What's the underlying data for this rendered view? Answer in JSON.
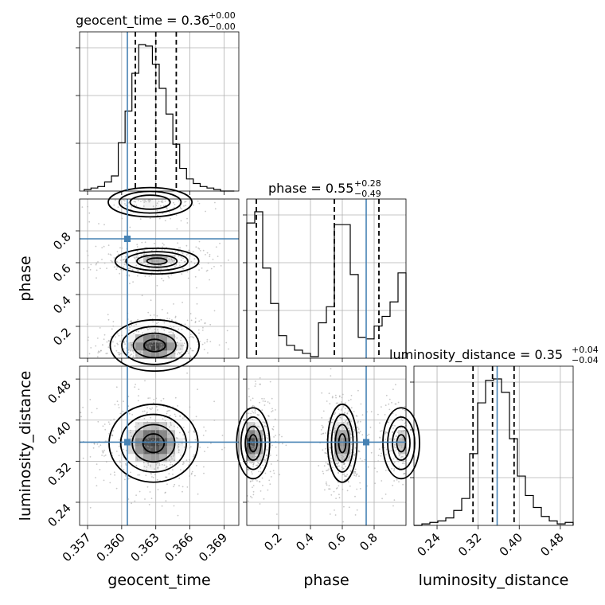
{
  "chart_data": {
    "type": "corner",
    "parameters": [
      "geocent_time",
      "phase",
      "luminosity_distance"
    ],
    "ranges": {
      "geocent_time": [
        0.3563,
        0.3703
      ],
      "phase": [
        0.0,
        1.0
      ],
      "luminosity_distance": [
        0.195,
        0.505
      ]
    },
    "ticks": {
      "geocent_time": [
        0.357,
        0.36,
        0.363,
        0.366,
        0.369
      ],
      "phase": [
        0.2,
        0.4,
        0.6,
        0.8
      ],
      "luminosity_distance": [
        0.24,
        0.32,
        0.4,
        0.48
      ]
    },
    "tick_labels": {
      "geocent_time": [
        "0.357",
        "0.360",
        "0.363",
        "0.366",
        "0.369"
      ],
      "phase": [
        "0.2",
        "0.4",
        "0.6",
        "0.8"
      ],
      "luminosity_distance": [
        "0.24",
        "0.32",
        "0.40",
        "0.48"
      ]
    },
    "truths": {
      "geocent_time": 0.3605,
      "phase": 0.75,
      "luminosity_distance": 0.357
    },
    "titles": [
      {
        "param": "geocent_time",
        "text": "geocent_time = 0.36",
        "plus": "+0.00",
        "minus": "−0.00"
      },
      {
        "param": "phase",
        "text": "phase = 0.55",
        "plus": "+0.28",
        "minus": "−0.49"
      },
      {
        "param": "luminosity_distance",
        "text": "luminosity_distance = 0.35",
        "plus": "+0.04",
        "minus": "−0.04"
      }
    ],
    "quantiles": {
      "geocent_time": [
        0.3612,
        0.363,
        0.3648
      ],
      "phase": [
        0.06,
        0.55,
        0.83
      ],
      "luminosity_distance": [
        0.31,
        0.348,
        0.39
      ]
    },
    "histograms": {
      "geocent_time": {
        "edges": [
          0.3567,
          0.3573,
          0.3579,
          0.3585,
          0.3591,
          0.3597,
          0.3603,
          0.3609,
          0.3615,
          0.3621,
          0.3627,
          0.3633,
          0.3639,
          0.3645,
          0.3651,
          0.3657,
          0.3663,
          0.3669,
          0.3675,
          0.3681,
          0.3687,
          0.3693,
          0.3699
        ],
        "counts": [
          1,
          2,
          3,
          6,
          10,
          32,
          53,
          78,
          97,
          96,
          84,
          68,
          51,
          31,
          15,
          8,
          5,
          3,
          2,
          1,
          0,
          0
        ]
      },
      "phase": {
        "edges": [
          0.0,
          0.05,
          0.1,
          0.15,
          0.2,
          0.25,
          0.3,
          0.35,
          0.4,
          0.45,
          0.5,
          0.55,
          0.6,
          0.65,
          0.7,
          0.75,
          0.8,
          0.85,
          0.9,
          0.95,
          1.0
        ],
        "counts": [
          84,
          91,
          56,
          34,
          14,
          8,
          5,
          3,
          1,
          22,
          32,
          83,
          83,
          52,
          13,
          12,
          20,
          26,
          35,
          53
        ]
      },
      "luminosity_distance": {
        "edges": [
          0.195,
          0.2105,
          0.226,
          0.2415,
          0.257,
          0.2725,
          0.288,
          0.3035,
          0.319,
          0.3345,
          0.35,
          0.3655,
          0.381,
          0.3965,
          0.412,
          0.4275,
          0.443,
          0.4585,
          0.474,
          0.4895,
          0.505
        ],
        "counts": [
          0,
          1,
          2,
          3,
          5,
          10,
          18,
          48,
          82,
          97,
          98,
          89,
          58,
          33,
          20,
          12,
          6,
          3,
          1,
          2
        ]
      }
    },
    "density_modes": [
      {
        "pair": [
          "geocent_time",
          "phase"
        ],
        "center": [
          0.3629,
          0.08
        ],
        "spread": [
          0.0017,
          0.07
        ],
        "weight": 1.0
      },
      {
        "pair": [
          "geocent_time",
          "phase"
        ],
        "center": [
          0.3631,
          0.61
        ],
        "spread": [
          0.0016,
          0.035
        ],
        "weight": 0.7
      },
      {
        "pair": [
          "geocent_time",
          "phase"
        ],
        "center": [
          0.3625,
          0.98
        ],
        "spread": [
          0.0016,
          0.04
        ],
        "weight": 0.4
      },
      {
        "pair": [
          "geocent_time",
          "luminosity_distance"
        ],
        "center": [
          0.3628,
          0.355
        ],
        "spread": [
          0.0017,
          0.033
        ],
        "weight": 1.0
      },
      {
        "pair": [
          "phase",
          "luminosity_distance"
        ],
        "center": [
          0.04,
          0.355
        ],
        "spread": [
          0.045,
          0.03
        ],
        "weight": 1.0
      },
      {
        "pair": [
          "phase",
          "luminosity_distance"
        ],
        "center": [
          0.6,
          0.355
        ],
        "spread": [
          0.04,
          0.033
        ],
        "weight": 0.9
      },
      {
        "pair": [
          "phase",
          "luminosity_distance"
        ],
        "center": [
          0.97,
          0.355
        ],
        "spread": [
          0.05,
          0.03
        ],
        "weight": 0.6
      }
    ],
    "grid": true
  }
}
